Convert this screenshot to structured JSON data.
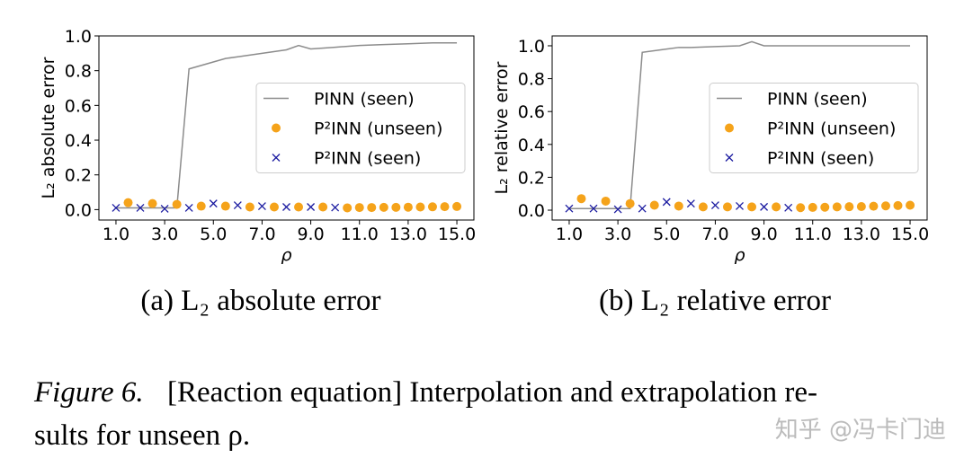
{
  "chart_data": [
    {
      "type": "line",
      "subcaption": "(a) L₂ absolute error",
      "ylabel": "L₂ absolute error",
      "xlabel": "ρ",
      "xlim": [
        0.3,
        15.7
      ],
      "ylim": [
        -0.06,
        1.0
      ],
      "xticks": [
        {
          "value": 1,
          "label": "1.0"
        },
        {
          "value": 3,
          "label": "3.0"
        },
        {
          "value": 5,
          "label": "5.0"
        },
        {
          "value": 7,
          "label": "7.0"
        },
        {
          "value": 9,
          "label": "9.0"
        },
        {
          "value": 11,
          "label": "11.0"
        },
        {
          "value": 13,
          "label": "13.0"
        },
        {
          "value": 15,
          "label": "15.0"
        }
      ],
      "yticks": [
        {
          "value": 0,
          "label": "0.0"
        },
        0.2,
        0.4,
        0.6,
        0.8,
        {
          "value": 1,
          "label": "1.0"
        }
      ],
      "legend": "center right",
      "series": [
        {
          "name": "PINN (seen)",
          "color": "#8c8c8c",
          "marker": "none",
          "x": [
            1,
            1.5,
            2,
            2.5,
            3,
            3.5,
            4,
            5,
            5.5,
            6,
            7,
            8,
            8.5,
            9,
            10,
            11,
            12,
            13,
            14,
            15
          ],
          "values": [
            0.01,
            0.01,
            0.01,
            0.01,
            0.01,
            0.01,
            0.81,
            0.85,
            0.87,
            0.88,
            0.9,
            0.92,
            0.945,
            0.925,
            0.935,
            0.945,
            0.95,
            0.955,
            0.96,
            0.96
          ]
        },
        {
          "name": "P²INN (unseen)",
          "color": "#f5a31a",
          "marker": "o",
          "x": [
            1.5,
            2.5,
            3.5,
            4.5,
            5.5,
            6.5,
            7.5,
            8.5,
            9.5,
            10.5,
            11,
            11.5,
            12,
            12.5,
            13,
            13.5,
            14,
            14.5,
            15
          ],
          "values": [
            0.04,
            0.035,
            0.03,
            0.02,
            0.02,
            0.015,
            0.015,
            0.015,
            0.015,
            0.01,
            0.012,
            0.012,
            0.013,
            0.013,
            0.014,
            0.015,
            0.016,
            0.017,
            0.018
          ]
        },
        {
          "name": "P²INN (seen)",
          "color": "#1a1aa0",
          "marker": "x",
          "x": [
            1,
            2,
            3,
            4,
            5,
            6,
            7,
            8,
            9,
            10
          ],
          "values": [
            0.01,
            0.01,
            0.005,
            0.01,
            0.035,
            0.025,
            0.02,
            0.015,
            0.015,
            0.012
          ]
        }
      ]
    },
    {
      "type": "line",
      "subcaption": "(b) L₂ relative error",
      "ylabel": "L₂ relative error",
      "xlabel": "ρ",
      "xlim": [
        0.3,
        15.7
      ],
      "ylim": [
        -0.06,
        1.06
      ],
      "xticks": [
        {
          "value": 1,
          "label": "1.0"
        },
        {
          "value": 3,
          "label": "3.0"
        },
        {
          "value": 5,
          "label": "5.0"
        },
        {
          "value": 7,
          "label": "7.0"
        },
        {
          "value": 9,
          "label": "9.0"
        },
        {
          "value": 11,
          "label": "11.0"
        },
        {
          "value": 13,
          "label": "13.0"
        },
        {
          "value": 15,
          "label": "15.0"
        }
      ],
      "yticks": [
        {
          "value": 0,
          "label": "0.0"
        },
        0.2,
        0.4,
        0.6,
        0.8,
        {
          "value": 1,
          "label": "1.0"
        }
      ],
      "legend": "center right",
      "series": [
        {
          "name": "PINN (seen)",
          "color": "#8c8c8c",
          "marker": "none",
          "x": [
            1,
            1.5,
            2,
            2.5,
            3,
            3.5,
            4,
            5,
            5.5,
            6,
            7,
            8,
            8.5,
            9,
            10,
            11,
            12,
            13,
            14,
            15
          ],
          "values": [
            0.01,
            0.01,
            0.01,
            0.01,
            0.01,
            0.01,
            0.96,
            0.98,
            0.99,
            0.99,
            0.995,
            1.0,
            1.025,
            1.0,
            1.0,
            1.0,
            1.0,
            1.0,
            1.0,
            1.0
          ]
        },
        {
          "name": "P²INN (unseen)",
          "color": "#f5a31a",
          "marker": "o",
          "x": [
            1.5,
            2.5,
            3.5,
            4.5,
            5.5,
            6.5,
            7.5,
            8.5,
            9.5,
            10.5,
            11,
            11.5,
            12,
            12.5,
            13,
            13.5,
            14,
            14.5,
            15
          ],
          "values": [
            0.07,
            0.055,
            0.04,
            0.03,
            0.025,
            0.02,
            0.02,
            0.02,
            0.02,
            0.015,
            0.017,
            0.018,
            0.02,
            0.021,
            0.022,
            0.024,
            0.026,
            0.028,
            0.03
          ]
        },
        {
          "name": "P²INN (seen)",
          "color": "#1a1aa0",
          "marker": "x",
          "x": [
            1,
            2,
            3,
            4,
            5,
            6,
            7,
            8,
            9,
            10
          ],
          "values": [
            0.01,
            0.01,
            0.005,
            0.01,
            0.05,
            0.04,
            0.03,
            0.025,
            0.02,
            0.015
          ]
        }
      ]
    }
  ],
  "caption": {
    "label": "Figure 6.",
    "lines": [
      "[Reaction equation] Interpolation and extrapolation re-",
      "sults for unseen ρ."
    ]
  },
  "watermark": "知乎 @冯卡门迪"
}
